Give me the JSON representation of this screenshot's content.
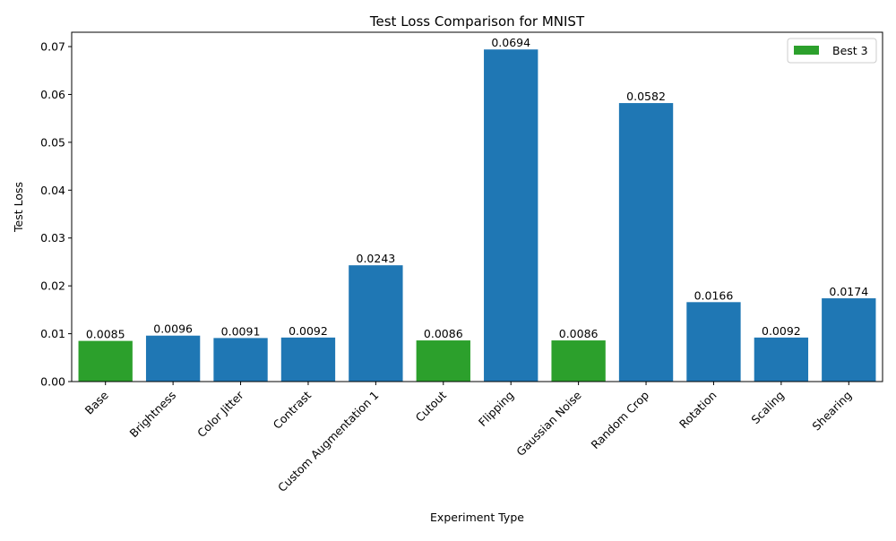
{
  "chart_data": {
    "type": "bar",
    "title": "Test Loss Comparison for MNIST",
    "xlabel": "Experiment Type",
    "ylabel": "Test Loss",
    "categories": [
      "Base",
      "Brightness",
      "Color Jitter",
      "Contrast",
      "Custom Augmentation 1",
      "Cutout",
      "Flipping",
      "Gaussian Noise",
      "Random Crop",
      "Rotation",
      "Scaling",
      "Shearing"
    ],
    "values": [
      0.0085,
      0.0096,
      0.0091,
      0.0092,
      0.0243,
      0.0086,
      0.0694,
      0.0086,
      0.0582,
      0.0166,
      0.0092,
      0.0174
    ],
    "value_labels": [
      "0.0085",
      "0.0096",
      "0.0091",
      "0.0092",
      "0.0243",
      "0.0086",
      "0.0694",
      "0.0086",
      "0.0582",
      "0.0166",
      "0.0092",
      "0.0174"
    ],
    "highlighted": [
      true,
      false,
      false,
      false,
      false,
      true,
      false,
      true,
      false,
      false,
      false,
      false
    ],
    "ylim": [
      0,
      0.073
    ],
    "yticks": [
      0.0,
      0.01,
      0.02,
      0.03,
      0.04,
      0.05,
      0.06,
      0.07
    ],
    "ytick_labels": [
      "0.00",
      "0.01",
      "0.02",
      "0.03",
      "0.04",
      "0.05",
      "0.06",
      "0.07"
    ],
    "grid": false,
    "legend": {
      "placement": "top-right",
      "entries": [
        {
          "label": "Best 3",
          "color": "#2ca02c"
        }
      ]
    },
    "colors": {
      "default": "#1f77b4",
      "highlight": "#2ca02c"
    }
  }
}
